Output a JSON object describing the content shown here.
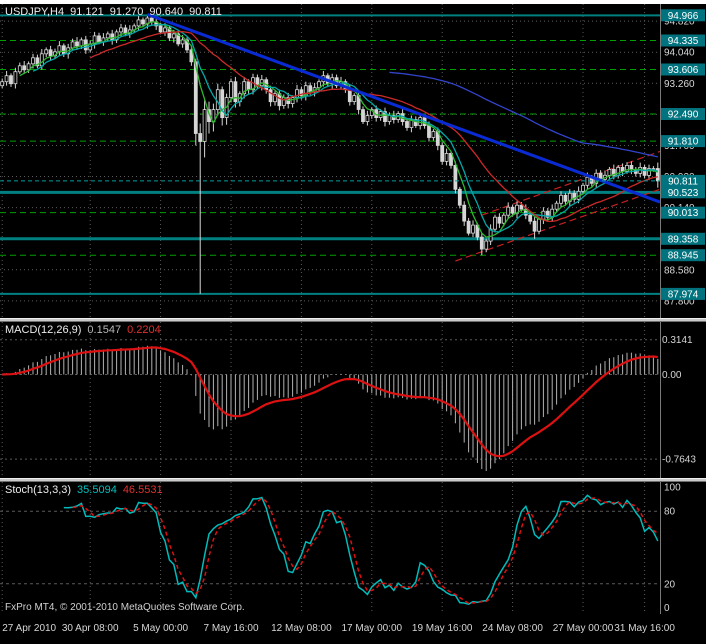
{
  "header": {
    "symbol_timeframe": "USDJPY,H4",
    "open": "91.121",
    "high": "91.270",
    "low": "90.640",
    "close": "90.811"
  },
  "macd_header": {
    "label": "MACD(12,26,9)",
    "main_value": "0.1547",
    "signal_value": "0.2204"
  },
  "stoch_header": {
    "label": "Stoch(13,3,3)",
    "k_value": "35.5094",
    "d_value": "46.5531"
  },
  "footer": {
    "copyright": "FxPro MT4, © 2001-2010 MetaQuotes Software Corp."
  },
  "colors": {
    "background": "#000000",
    "grid": "#5a5a5a",
    "axis_text": "#d6d6d6",
    "candle_outline": "#d6d6d6",
    "level_green": "#00a000",
    "level_teal": "#008080",
    "price_box_bg": "#00737e",
    "price_box_text": "#ffffff",
    "trendline": "#0a2bd4",
    "channel": "#c82020",
    "ma_green": "#2eb82e",
    "ma_teal": "#00a8a8",
    "ma_red": "#cc2929",
    "ma_blue": "#3344cc",
    "macd_histogram": "#b2b2b2",
    "macd_signal": "#dd1111",
    "stoch_k": "#00bcbc",
    "stoch_d": "#dd1111",
    "separator": "#c9c9c9",
    "current_price_line": "#00a0a0",
    "axis_border": "#7a7a7a"
  },
  "chart_data": {
    "type": "candlestick",
    "title": "USDJPY,H4",
    "bars": 150,
    "candles": [
      [
        93.2,
        93.38,
        93.14,
        93.3
      ],
      [
        93.3,
        93.57,
        93.2,
        93.45
      ],
      [
        93.45,
        93.51,
        93.17,
        93.25
      ],
      [
        93.25,
        93.65,
        93.13,
        93.55
      ],
      [
        93.55,
        93.78,
        93.49,
        93.7
      ],
      [
        93.7,
        93.82,
        93.5,
        93.6
      ],
      [
        93.6,
        93.81,
        93.52,
        93.75
      ],
      [
        93.75,
        94.0,
        93.63,
        93.9
      ],
      [
        93.9,
        93.98,
        93.64,
        93.7
      ],
      [
        93.7,
        94.12,
        93.6,
        94.0
      ],
      [
        94.0,
        94.16,
        93.92,
        94.1
      ],
      [
        94.1,
        94.2,
        93.83,
        93.95
      ],
      [
        93.95,
        94.13,
        93.89,
        94.05
      ],
      [
        94.05,
        94.32,
        93.95,
        94.2
      ],
      [
        94.2,
        94.26,
        93.92,
        94.0
      ],
      [
        94.0,
        94.25,
        93.88,
        94.15
      ],
      [
        94.15,
        94.38,
        94.09,
        94.3
      ],
      [
        94.3,
        94.42,
        94.1,
        94.2
      ],
      [
        94.2,
        94.41,
        94.12,
        94.35
      ],
      [
        94.35,
        94.45,
        94.0,
        94.1
      ],
      [
        94.1,
        94.33,
        94.04,
        94.25
      ],
      [
        94.25,
        94.55,
        94.13,
        94.45
      ],
      [
        94.45,
        94.53,
        94.24,
        94.3
      ],
      [
        94.3,
        94.52,
        94.2,
        94.4
      ],
      [
        94.4,
        94.56,
        94.32,
        94.5
      ],
      [
        94.5,
        94.6,
        94.23,
        94.35
      ],
      [
        94.35,
        94.61,
        94.27,
        94.55
      ],
      [
        94.55,
        94.75,
        94.43,
        94.65
      ],
      [
        94.65,
        94.73,
        94.44,
        94.5
      ],
      [
        94.5,
        94.72,
        94.4,
        94.6
      ],
      [
        94.6,
        94.76,
        94.52,
        94.7
      ],
      [
        94.7,
        94.95,
        94.58,
        94.85
      ],
      [
        94.85,
        94.91,
        94.67,
        94.75
      ],
      [
        94.75,
        94.966,
        94.63,
        94.9
      ],
      [
        94.9,
        94.94,
        94.72,
        94.8
      ],
      [
        94.8,
        94.92,
        94.6,
        94.7
      ],
      [
        94.7,
        94.78,
        94.49,
        94.55
      ],
      [
        94.55,
        94.77,
        94.45,
        94.65
      ],
      [
        94.65,
        94.71,
        94.32,
        94.4
      ],
      [
        94.4,
        94.6,
        94.28,
        94.5
      ],
      [
        94.5,
        94.58,
        94.19,
        94.25
      ],
      [
        94.25,
        94.47,
        94.15,
        94.35
      ],
      [
        94.35,
        94.41,
        94.02,
        94.1
      ],
      [
        94.1,
        94.2,
        93.7,
        93.8
      ],
      [
        93.8,
        93.88,
        91.7,
        92.0
      ],
      [
        92.0,
        92.25,
        87.974,
        91.8
      ],
      [
        91.8,
        92.85,
        91.4,
        92.6
      ],
      [
        92.6,
        92.8,
        92.0,
        92.3
      ],
      [
        92.3,
        92.75,
        92.05,
        92.6
      ],
      [
        92.6,
        93.25,
        92.45,
        93.1
      ],
      [
        93.1,
        93.18,
        92.2,
        92.4
      ],
      [
        92.4,
        93.0,
        92.22,
        92.9
      ],
      [
        92.9,
        93.38,
        92.78,
        93.3
      ],
      [
        93.3,
        93.42,
        92.65,
        92.8
      ],
      [
        92.8,
        93.06,
        92.68,
        93.0
      ],
      [
        93.0,
        93.42,
        92.88,
        93.3
      ],
      [
        93.3,
        93.36,
        93.0,
        93.1
      ],
      [
        93.1,
        93.5,
        92.98,
        93.4
      ],
      [
        93.4,
        93.48,
        93.12,
        93.2
      ],
      [
        93.2,
        93.47,
        93.08,
        93.35
      ],
      [
        93.35,
        93.41,
        93.0,
        93.1
      ],
      [
        93.1,
        93.2,
        92.68,
        92.8
      ],
      [
        92.8,
        93.06,
        92.7,
        93.0
      ],
      [
        93.0,
        93.1,
        92.58,
        92.7
      ],
      [
        92.7,
        92.98,
        92.62,
        92.9
      ],
      [
        92.9,
        93.02,
        92.63,
        92.75
      ],
      [
        92.75,
        92.96,
        92.65,
        92.9
      ],
      [
        92.9,
        93.22,
        92.78,
        93.1
      ],
      [
        93.1,
        93.18,
        92.85,
        92.95
      ],
      [
        92.95,
        93.3,
        92.83,
        93.2
      ],
      [
        93.2,
        93.28,
        92.97,
        93.05
      ],
      [
        93.05,
        93.27,
        92.93,
        93.15
      ],
      [
        93.15,
        93.36,
        93.07,
        93.3
      ],
      [
        93.3,
        93.57,
        93.18,
        93.45
      ],
      [
        93.45,
        93.51,
        93.17,
        93.25
      ],
      [
        93.25,
        93.5,
        93.13,
        93.4
      ],
      [
        93.4,
        93.48,
        93.14,
        93.2
      ],
      [
        93.2,
        93.42,
        93.1,
        93.3
      ],
      [
        93.3,
        93.36,
        93.02,
        93.1
      ],
      [
        93.1,
        93.22,
        92.7,
        92.8
      ],
      [
        92.8,
        93.01,
        92.72,
        92.95
      ],
      [
        92.95,
        93.05,
        92.48,
        92.6
      ],
      [
        92.6,
        92.68,
        92.24,
        92.3
      ],
      [
        92.3,
        92.57,
        92.2,
        92.45
      ],
      [
        92.45,
        92.66,
        92.37,
        92.6
      ],
      [
        92.6,
        92.7,
        92.3,
        92.4
      ],
      [
        92.4,
        92.61,
        92.32,
        92.55
      ],
      [
        92.55,
        92.65,
        92.18,
        92.3
      ],
      [
        92.3,
        92.53,
        92.22,
        92.45
      ],
      [
        92.45,
        92.57,
        92.25,
        92.35
      ],
      [
        92.35,
        92.56,
        92.27,
        92.5
      ],
      [
        92.5,
        92.62,
        92.2,
        92.3
      ],
      [
        92.3,
        92.36,
        92.07,
        92.15
      ],
      [
        92.15,
        92.45,
        92.03,
        92.35
      ],
      [
        92.35,
        92.43,
        92.14,
        92.2
      ],
      [
        92.2,
        92.52,
        92.1,
        92.4
      ],
      [
        92.4,
        92.46,
        92.12,
        92.2
      ],
      [
        92.2,
        92.3,
        91.8,
        91.9
      ],
      [
        91.9,
        92.11,
        91.82,
        92.05
      ],
      [
        92.05,
        92.15,
        91.58,
        91.7
      ],
      [
        91.7,
        91.78,
        91.22,
        91.3
      ],
      [
        91.3,
        91.62,
        91.2,
        91.5
      ],
      [
        91.5,
        91.56,
        91.12,
        91.2
      ],
      [
        91.2,
        91.3,
        90.5,
        90.6
      ],
      [
        90.6,
        90.66,
        90.12,
        90.2
      ],
      [
        90.2,
        90.3,
        89.68,
        89.8
      ],
      [
        89.8,
        89.88,
        89.44,
        89.5
      ],
      [
        89.5,
        89.82,
        89.4,
        89.7
      ],
      [
        89.7,
        89.76,
        89.32,
        89.4
      ],
      [
        89.4,
        89.5,
        88.945,
        89.1
      ],
      [
        89.1,
        89.36,
        89.02,
        89.3
      ],
      [
        89.3,
        89.72,
        89.2,
        89.6
      ],
      [
        89.6,
        89.96,
        89.52,
        89.9
      ],
      [
        89.9,
        90.0,
        89.63,
        89.75
      ],
      [
        89.75,
        90.01,
        89.67,
        89.95
      ],
      [
        89.95,
        90.27,
        89.85,
        90.15
      ],
      [
        90.15,
        90.21,
        89.92,
        90.0
      ],
      [
        90.0,
        90.3,
        89.88,
        90.2
      ],
      [
        90.2,
        90.28,
        90.04,
        90.1
      ],
      [
        90.1,
        90.22,
        89.85,
        89.95
      ],
      [
        89.95,
        90.01,
        89.72,
        89.8
      ],
      [
        89.8,
        89.9,
        89.358,
        89.55
      ],
      [
        89.55,
        89.91,
        89.47,
        89.85
      ],
      [
        89.85,
        90.15,
        89.73,
        90.05
      ],
      [
        90.05,
        90.13,
        89.82,
        89.9
      ],
      [
        89.9,
        90.22,
        89.8,
        90.1
      ],
      [
        90.1,
        90.31,
        90.02,
        90.25
      ],
      [
        90.25,
        90.55,
        90.15,
        90.45
      ],
      [
        90.45,
        90.51,
        90.22,
        90.3
      ],
      [
        90.3,
        90.6,
        90.18,
        90.5
      ],
      [
        90.5,
        90.58,
        90.27,
        90.35
      ],
      [
        90.35,
        90.67,
        90.25,
        90.55
      ],
      [
        90.55,
        90.76,
        90.47,
        90.7
      ],
      [
        90.7,
        91.02,
        90.6,
        90.9
      ],
      [
        90.9,
        90.96,
        90.67,
        90.75
      ],
      [
        90.75,
        91.1,
        90.63,
        91.0
      ],
      [
        91.0,
        91.08,
        90.79,
        90.85
      ],
      [
        90.85,
        91.07,
        90.75,
        90.95
      ],
      [
        90.95,
        91.16,
        90.87,
        91.1
      ],
      [
        91.1,
        91.22,
        90.85,
        90.95
      ],
      [
        90.95,
        91.21,
        90.87,
        91.15
      ],
      [
        91.15,
        91.25,
        90.93,
        91.05
      ],
      [
        91.05,
        91.28,
        90.99,
        91.2
      ],
      [
        91.2,
        91.3,
        90.98,
        91.1
      ],
      [
        91.1,
        91.16,
        90.92,
        91.0
      ],
      [
        91.0,
        91.27,
        90.9,
        91.15
      ],
      [
        91.15,
        91.21,
        90.87,
        90.95
      ],
      [
        90.95,
        91.22,
        90.83,
        91.12
      ],
      [
        91.12,
        91.18,
        91.04,
        91.12
      ],
      [
        91.121,
        91.27,
        90.64,
        90.811
      ]
    ],
    "price_panel": {
      "ylim": [
        87.52,
        95.2
      ],
      "y_ticks": [
        94.82,
        94.04,
        93.26,
        92.48,
        91.7,
        90.92,
        90.14,
        89.36,
        88.58,
        87.8
      ],
      "levels": [
        {
          "price": 94.966,
          "label": "94.966",
          "style": "solid",
          "width": 2
        },
        {
          "price": 94.335,
          "label": "94.335",
          "style": "dashed",
          "width": 1
        },
        {
          "price": 93.606,
          "label": "93.606",
          "style": "dashed",
          "width": 1
        },
        {
          "price": 92.49,
          "label": "92.490",
          "style": "dashed",
          "width": 1
        },
        {
          "price": 91.81,
          "label": "91.810",
          "style": "dashed",
          "width": 1
        },
        {
          "price": 90.523,
          "label": "90.523",
          "style": "solid",
          "width": 3
        },
        {
          "price": 90.013,
          "label": "90.013",
          "style": "dashed",
          "width": 1
        },
        {
          "price": 89.358,
          "label": "89.358",
          "style": "solid",
          "width": 3
        },
        {
          "price": 88.945,
          "label": "88.945",
          "style": "dashed",
          "width": 1
        },
        {
          "price": 87.974,
          "label": "87.974",
          "style": "solid",
          "width": 2
        }
      ],
      "current_price": {
        "value": 90.811,
        "label": "90.811"
      },
      "trendline": {
        "bar1": 33,
        "price1": 94.99,
        "bar2": 150,
        "price2": 90.28
      },
      "channel_lines": [
        {
          "bar1": 103,
          "price1": 88.8,
          "bar2": 150,
          "price2": 90.6
        },
        {
          "bar1": 109,
          "price1": 89.95,
          "bar2": 150,
          "price2": 91.55
        }
      ],
      "moving_averages": [
        {
          "period": 5,
          "color_key": "ma_green"
        },
        {
          "period": 8,
          "color_key": "ma_teal"
        },
        {
          "period": 21,
          "color_key": "ma_red"
        },
        {
          "period": 89,
          "color_key": "ma_blue"
        }
      ]
    },
    "x_axis": {
      "labels": [
        {
          "text": "27 Apr 2010",
          "bar": 0
        },
        {
          "text": "30 Apr 08:00",
          "bar": 20
        },
        {
          "text": "5 May 00:00",
          "bar": 36
        },
        {
          "text": "7 May 16:00",
          "bar": 52
        },
        {
          "text": "12 May 08:00",
          "bar": 68
        },
        {
          "text": "17 May 00:00",
          "bar": 84
        },
        {
          "text": "19 May 16:00",
          "bar": 100
        },
        {
          "text": "24 May 08:00",
          "bar": 116
        },
        {
          "text": "27 May 00:00",
          "bar": 132
        },
        {
          "text": "31 May 16:00",
          "bar": 146
        }
      ]
    },
    "macd_panel": {
      "type": "macd",
      "fast": 12,
      "slow": 26,
      "signal": 9,
      "current_main": 0.1547,
      "current_signal": 0.2204,
      "ylim": [
        -0.88,
        0.42
      ],
      "levels": [
        {
          "value": 0.3141,
          "label": "0.3141"
        },
        {
          "value": 0,
          "label": "0.00"
        },
        {
          "value": -0.7643,
          "label": "-0.7643"
        }
      ]
    },
    "stoch_panel": {
      "type": "stochastic",
      "k_period": 13,
      "d_period": 3,
      "slowing": 3,
      "current_k": 35.5094,
      "current_d": 46.5531,
      "ylim": [
        0,
        100
      ],
      "levels": [
        80,
        20
      ],
      "y_ticks": [
        {
          "value": 100,
          "label": "100"
        },
        {
          "value": 80,
          "label": "80"
        },
        {
          "value": 20,
          "label": "20"
        },
        {
          "value": 0,
          "label": "0"
        }
      ]
    }
  }
}
